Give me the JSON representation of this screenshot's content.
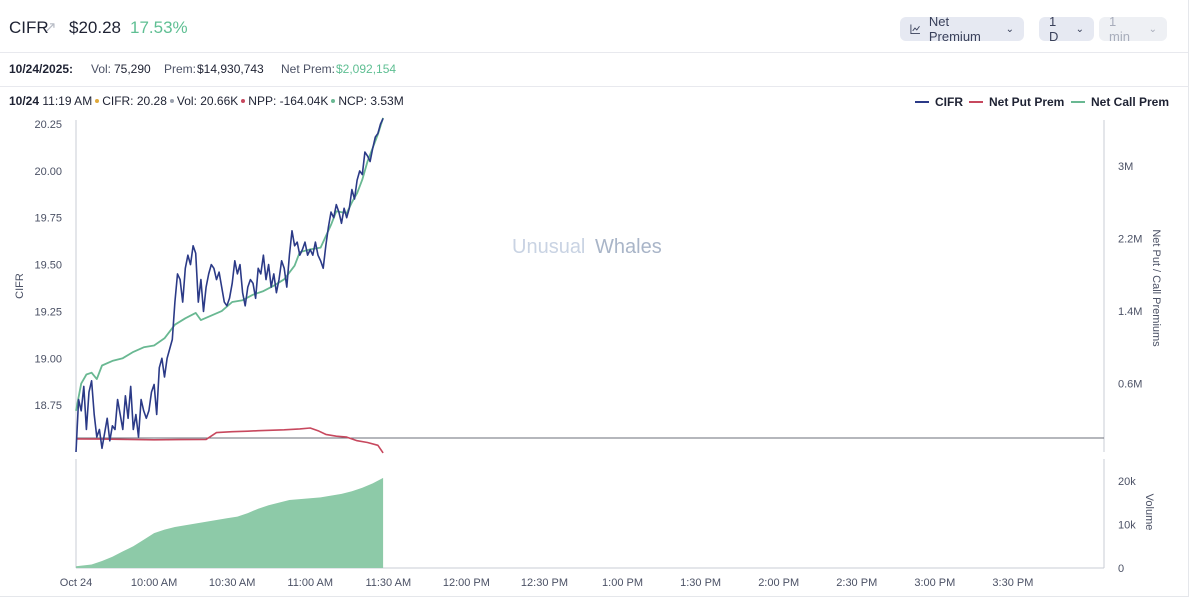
{
  "header": {
    "ticker": "CIFR",
    "ticker_icon": "external-link-icon",
    "price": "$20.28",
    "change_pct": "17.53%",
    "metric_dropdown": "Net Premium",
    "range_dropdown": "1 D",
    "interval_dropdown": "1 min"
  },
  "summary": {
    "date": "10/24/2025:",
    "vol_label": "Vol:",
    "vol_value": "75,290",
    "prem_label": "Prem:",
    "prem_value": "$14,930,743",
    "net_prem_label": "Net Prem:",
    "net_prem_value": "$2,092,154"
  },
  "tooltip": {
    "date": "10/24",
    "time": "11:19 AM",
    "cifr": "CIFR: 20.28",
    "vol": "Vol: 20.66K",
    "npp": "NPP: -164.04K",
    "ncp": "NCP: 3.53M"
  },
  "colors": {
    "cifr": "#2b3a87",
    "put": "#c7485e",
    "call": "#69b892",
    "volume": "#8dcaa8",
    "accent_green": "#5fbf93"
  },
  "watermark": {
    "part1": "Unusual",
    "part2": "Whales"
  },
  "chart_data": {
    "type": "line",
    "legend": [
      "CIFR",
      "Net Put Prem",
      "Net Call Prem"
    ],
    "legend_position": "top-right",
    "x_ticks": [
      "Oct 24",
      "10:00 AM",
      "10:30 AM",
      "11:00 AM",
      "11:30 AM",
      "12:00 PM",
      "12:30 PM",
      "1:00 PM",
      "1:30 PM",
      "2:00 PM",
      "2:30 PM",
      "3:00 PM",
      "3:30 PM"
    ],
    "x_tick_minutes": [
      0,
      30,
      60,
      90,
      120,
      150,
      180,
      210,
      240,
      270,
      300,
      330,
      360
    ],
    "x_range_minutes": [
      0,
      395
    ],
    "y_left": {
      "label": "CIFR",
      "ticks": [
        18.75,
        19.0,
        19.25,
        19.5,
        19.75,
        20.0,
        20.25
      ],
      "range": [
        18.5,
        20.25
      ]
    },
    "y_right": {
      "label": "Net Put / Call Premiums",
      "ticks": [
        "0.6M",
        "1.4M",
        "2.2M",
        "3M"
      ],
      "tick_values": [
        600000,
        1400000,
        2200000,
        3000000
      ]
    },
    "y_volume": {
      "label": "Volume",
      "ticks": [
        "0",
        "10k",
        "20k"
      ],
      "tick_values": [
        0,
        10000,
        20000
      ],
      "range": [
        0,
        25000
      ]
    },
    "series": [
      {
        "name": "CIFR",
        "axis": "left",
        "points": [
          [
            0,
            18.5
          ],
          [
            1,
            18.78
          ],
          [
            2,
            18.72
          ],
          [
            3,
            18.85
          ],
          [
            4,
            18.62
          ],
          [
            5,
            18.82
          ],
          [
            6,
            18.88
          ],
          [
            7,
            18.7
          ],
          [
            8,
            18.58
          ],
          [
            9,
            18.62
          ],
          [
            10,
            18.52
          ],
          [
            11,
            18.6
          ],
          [
            12,
            18.68
          ],
          [
            13,
            18.56
          ],
          [
            14,
            18.64
          ],
          [
            15,
            18.62
          ],
          [
            16,
            18.78
          ],
          [
            17,
            18.7
          ],
          [
            18,
            18.62
          ],
          [
            19,
            18.8
          ],
          [
            20,
            18.68
          ],
          [
            21,
            18.85
          ],
          [
            22,
            18.62
          ],
          [
            23,
            18.7
          ],
          [
            24,
            18.58
          ],
          [
            25,
            18.78
          ],
          [
            26,
            18.72
          ],
          [
            27,
            18.68
          ],
          [
            28,
            18.72
          ],
          [
            29,
            18.82
          ],
          [
            30,
            18.86
          ],
          [
            31,
            18.7
          ],
          [
            32,
            18.95
          ],
          [
            33,
            19.0
          ],
          [
            34,
            18.9
          ],
          [
            35,
            19.0
          ],
          [
            36,
            19.05
          ],
          [
            37,
            19.1
          ],
          [
            38,
            19.3
          ],
          [
            39,
            19.45
          ],
          [
            40,
            19.42
          ],
          [
            41,
            19.3
          ],
          [
            42,
            19.48
          ],
          [
            43,
            19.55
          ],
          [
            44,
            19.5
          ],
          [
            45,
            19.6
          ],
          [
            46,
            19.56
          ],
          [
            47,
            19.3
          ],
          [
            48,
            19.42
          ],
          [
            49,
            19.25
          ],
          [
            50,
            19.38
          ],
          [
            51,
            19.45
          ],
          [
            52,
            19.5
          ],
          [
            53,
            19.48
          ],
          [
            54,
            19.42
          ],
          [
            55,
            19.46
          ],
          [
            56,
            19.38
          ],
          [
            57,
            19.3
          ],
          [
            58,
            19.28
          ],
          [
            59,
            19.32
          ],
          [
            60,
            19.4
          ],
          [
            61,
            19.52
          ],
          [
            62,
            19.45
          ],
          [
            63,
            19.5
          ],
          [
            64,
            19.35
          ],
          [
            65,
            19.28
          ],
          [
            66,
            19.38
          ],
          [
            67,
            19.42
          ],
          [
            68,
            19.4
          ],
          [
            69,
            19.32
          ],
          [
            70,
            19.48
          ],
          [
            71,
            19.45
          ],
          [
            72,
            19.55
          ],
          [
            73,
            19.42
          ],
          [
            74,
            19.5
          ],
          [
            75,
            19.38
          ],
          [
            76,
            19.45
          ],
          [
            77,
            19.35
          ],
          [
            78,
            19.42
          ],
          [
            79,
            19.52
          ],
          [
            80,
            19.48
          ],
          [
            81,
            19.38
          ],
          [
            82,
            19.55
          ],
          [
            83,
            19.68
          ],
          [
            84,
            19.6
          ],
          [
            85,
            19.62
          ],
          [
            86,
            19.55
          ],
          [
            87,
            19.58
          ],
          [
            88,
            19.62
          ],
          [
            89,
            19.55
          ],
          [
            90,
            19.58
          ],
          [
            91,
            19.55
          ],
          [
            92,
            19.62
          ],
          [
            93,
            19.55
          ],
          [
            94,
            19.52
          ],
          [
            95,
            19.48
          ],
          [
            96,
            19.6
          ],
          [
            97,
            19.7
          ],
          [
            98,
            19.78
          ],
          [
            99,
            19.75
          ],
          [
            100,
            19.82
          ],
          [
            101,
            19.78
          ],
          [
            102,
            19.72
          ],
          [
            103,
            19.8
          ],
          [
            104,
            19.75
          ],
          [
            105,
            19.8
          ],
          [
            106,
            19.9
          ],
          [
            107,
            19.85
          ],
          [
            108,
            19.95
          ],
          [
            109,
            20.0
          ],
          [
            110,
            19.98
          ],
          [
            111,
            20.1
          ],
          [
            112,
            20.08
          ],
          [
            113,
            20.05
          ],
          [
            114,
            20.12
          ],
          [
            115,
            20.18
          ],
          [
            116,
            20.2
          ],
          [
            117,
            20.25
          ],
          [
            118,
            20.28
          ]
        ]
      },
      {
        "name": "Net Put Prem",
        "axis": "right",
        "points": [
          [
            0,
            -10000
          ],
          [
            10,
            -12000
          ],
          [
            20,
            -15000
          ],
          [
            30,
            -20000
          ],
          [
            40,
            -18000
          ],
          [
            50,
            -15000
          ],
          [
            54,
            60000
          ],
          [
            60,
            70000
          ],
          [
            66,
            75000
          ],
          [
            70,
            80000
          ],
          [
            80,
            90000
          ],
          [
            86,
            100000
          ],
          [
            90,
            110000
          ],
          [
            93,
            80000
          ],
          [
            96,
            40000
          ],
          [
            100,
            20000
          ],
          [
            104,
            10000
          ],
          [
            108,
            -30000
          ],
          [
            112,
            -50000
          ],
          [
            116,
            -80000
          ],
          [
            118,
            -164040
          ]
        ]
      },
      {
        "name": "Net Call Prem",
        "axis": "right",
        "points": [
          [
            0,
            300000
          ],
          [
            2,
            600000
          ],
          [
            4,
            700000
          ],
          [
            6,
            720000
          ],
          [
            8,
            650000
          ],
          [
            10,
            800000
          ],
          [
            14,
            850000
          ],
          [
            18,
            880000
          ],
          [
            22,
            950000
          ],
          [
            26,
            1000000
          ],
          [
            30,
            1020000
          ],
          [
            34,
            1100000
          ],
          [
            38,
            1250000
          ],
          [
            42,
            1320000
          ],
          [
            46,
            1380000
          ],
          [
            48,
            1300000
          ],
          [
            52,
            1350000
          ],
          [
            56,
            1400000
          ],
          [
            60,
            1500000
          ],
          [
            64,
            1520000
          ],
          [
            68,
            1580000
          ],
          [
            72,
            1620000
          ],
          [
            76,
            1680000
          ],
          [
            80,
            1750000
          ],
          [
            84,
            1900000
          ],
          [
            86,
            2050000
          ],
          [
            90,
            2080000
          ],
          [
            94,
            2100000
          ],
          [
            98,
            2350000
          ],
          [
            100,
            2500000
          ],
          [
            104,
            2480000
          ],
          [
            106,
            2600000
          ],
          [
            108,
            2700000
          ],
          [
            110,
            2850000
          ],
          [
            112,
            3050000
          ],
          [
            114,
            3200000
          ],
          [
            116,
            3350000
          ],
          [
            118,
            3530000
          ]
        ]
      },
      {
        "name": "Volume",
        "axis": "volume",
        "type": "area",
        "points": [
          [
            0,
            400
          ],
          [
            6,
            800
          ],
          [
            10,
            1600
          ],
          [
            14,
            2600
          ],
          [
            18,
            3800
          ],
          [
            22,
            5000
          ],
          [
            26,
            6500
          ],
          [
            30,
            8000
          ],
          [
            34,
            8800
          ],
          [
            38,
            9400
          ],
          [
            42,
            9800
          ],
          [
            46,
            10200
          ],
          [
            50,
            10600
          ],
          [
            54,
            11000
          ],
          [
            58,
            11400
          ],
          [
            62,
            11800
          ],
          [
            66,
            12600
          ],
          [
            70,
            13600
          ],
          [
            74,
            14400
          ],
          [
            78,
            15000
          ],
          [
            82,
            15600
          ],
          [
            86,
            15800
          ],
          [
            90,
            16000
          ],
          [
            94,
            16200
          ],
          [
            98,
            16600
          ],
          [
            102,
            17000
          ],
          [
            106,
            17600
          ],
          [
            110,
            18400
          ],
          [
            114,
            19400
          ],
          [
            118,
            20660
          ]
        ]
      }
    ]
  }
}
